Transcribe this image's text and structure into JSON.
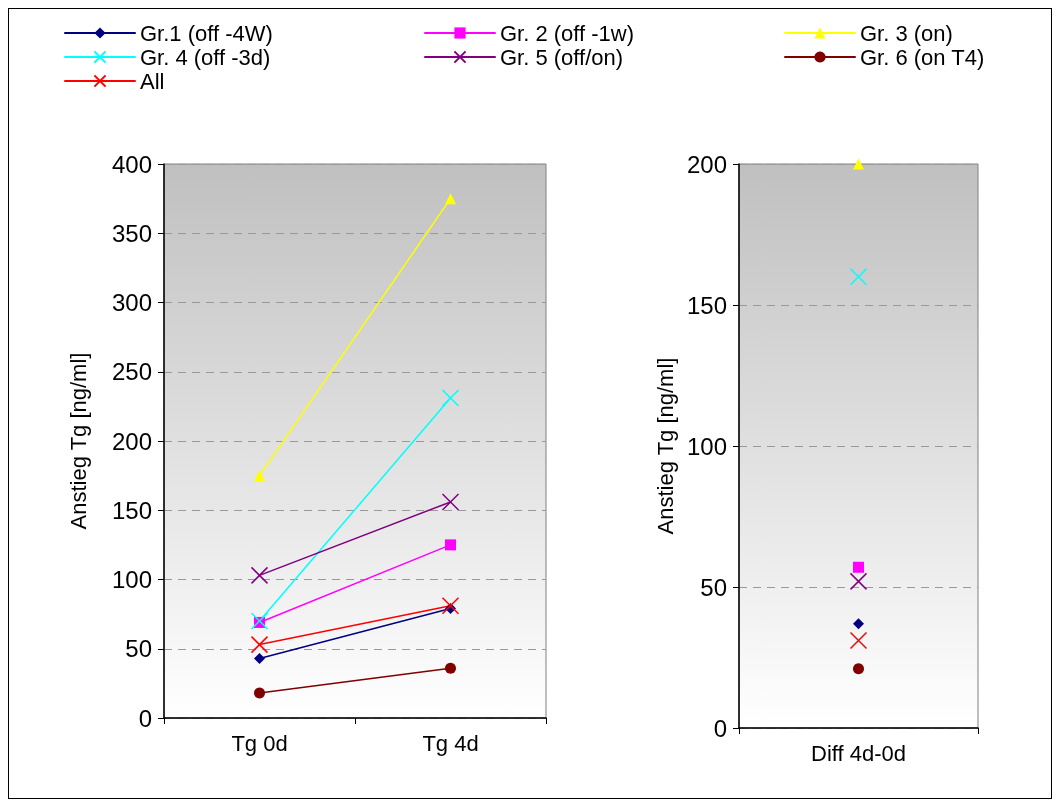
{
  "chart_data": [
    {
      "type": "line",
      "ylabel": "Anstieg Tg [ng/ml]",
      "categories": [
        "Tg 0d",
        "Tg 4d"
      ],
      "ylim": [
        0,
        400
      ],
      "yticks": [
        0,
        50,
        100,
        150,
        200,
        250,
        300,
        350,
        400
      ],
      "grid": "y",
      "legend": "top",
      "line_style": "solid",
      "series": [
        {
          "name": "Gr.1 (off -4W)",
          "color": "#000080",
          "marker": "diamond",
          "values": [
            43,
            79
          ]
        },
        {
          "name": "Gr. 2 (off -1w)",
          "color": "#ff00ff",
          "marker": "square",
          "values": [
            69,
            125
          ]
        },
        {
          "name": "Gr. 3 (on)",
          "color": "#ffff00",
          "marker": "triangle",
          "values": [
            175,
            375
          ]
        },
        {
          "name": "Gr. 4 (off -3d)",
          "color": "#00ffff",
          "marker": "cross",
          "values": [
            70,
            231
          ]
        },
        {
          "name": "Gr. 5 (off/on)",
          "color": "#800080",
          "marker": "cross",
          "values": [
            103,
            156
          ]
        },
        {
          "name": "Gr. 6 (on T4)",
          "color": "#800000",
          "marker": "circle",
          "values": [
            18,
            36
          ]
        },
        {
          "name": "All",
          "color": "#ff0000",
          "marker": "cross",
          "values": [
            53,
            81
          ]
        }
      ]
    },
    {
      "type": "scatter",
      "ylabel": "Anstieg Tg [ng/ml]",
      "categories": [
        "Diff 4d-0d"
      ],
      "ylim": [
        0,
        200
      ],
      "yticks": [
        0,
        50,
        100,
        150,
        200
      ],
      "grid": "y",
      "series": [
        {
          "color": "#000080",
          "marker": "diamond",
          "values": [
            37
          ]
        },
        {
          "color": "#ff00ff",
          "marker": "square",
          "values": [
            57
          ]
        },
        {
          "color": "#ffff00",
          "marker": "triangle",
          "values": [
            200
          ]
        },
        {
          "color": "#00ffff",
          "marker": "cross",
          "values": [
            160
          ]
        },
        {
          "color": "#800080",
          "marker": "cross",
          "values": [
            52
          ]
        },
        {
          "color": "#800000",
          "marker": "circle",
          "values": [
            21
          ]
        },
        {
          "color": "#ff0000",
          "marker": "cross",
          "values": [
            31
          ]
        }
      ]
    }
  ]
}
